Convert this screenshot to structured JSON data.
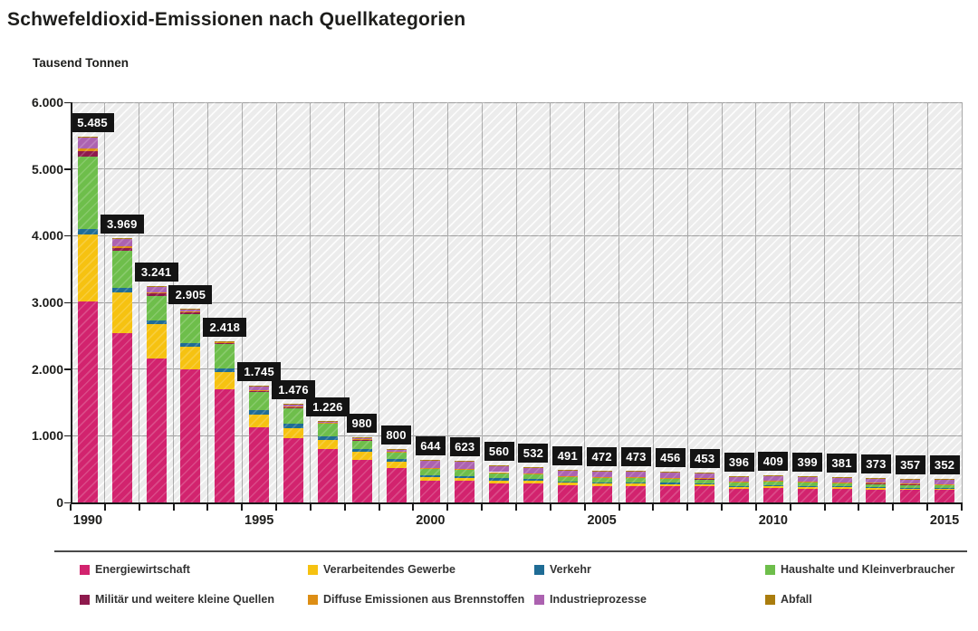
{
  "title": "Schwefeldioxid-Emissionen nach Quellkategorien",
  "unit_label": "Tausend Tonnen",
  "colors": {
    "plot_bg": "#ECECEC",
    "hatch": "#FFFFFF",
    "gridline": "#9E9E9E",
    "axis": "#1A1A1A",
    "value_label_bg": "#141414",
    "value_label_text": "#FFFFFF",
    "title_text": "#1D1D1B"
  },
  "chart_data": {
    "type": "bar",
    "stacked": true,
    "title": "Schwefeldioxid-Emissionen nach Quellkategorien",
    "ylabel": "Tausend Tonnen",
    "xlabel": "",
    "ylim": [
      0,
      6000
    ],
    "grid": true,
    "legend_position": "bottom",
    "categories": [
      1990,
      1991,
      1992,
      1993,
      1994,
      1995,
      1996,
      1997,
      1998,
      1999,
      2000,
      2001,
      2002,
      2003,
      2004,
      2005,
      2006,
      2007,
      2008,
      2009,
      2010,
      2011,
      2012,
      2013,
      2014,
      2015
    ],
    "x_tick_labels": [
      "1990",
      "1995",
      "2000",
      "2005",
      "2010",
      "2015"
    ],
    "y_tick_labels": [
      "0",
      "1.000",
      "2.000",
      "3.000",
      "4.000",
      "5.000",
      "6.000"
    ],
    "totals": [
      5485,
      3969,
      3241,
      2905,
      2418,
      1745,
      1476,
      1226,
      980,
      800,
      644,
      623,
      560,
      532,
      491,
      472,
      473,
      456,
      453,
      396,
      409,
      399,
      381,
      373,
      357,
      352
    ],
    "value_labels": [
      "5.485",
      "3.969",
      "3.241",
      "2.905",
      "2.418",
      "1.745",
      "1.476",
      "1.226",
      "980",
      "800",
      "644",
      "623",
      "560",
      "532",
      "491",
      "472",
      "473",
      "456",
      "453",
      "396",
      "409",
      "399",
      "381",
      "373",
      "357",
      "352"
    ],
    "series": [
      {
        "name": "Energiewirtschaft",
        "color": "#D2236E",
        "values": [
          3020,
          2540,
          2160,
          2000,
          1700,
          1130,
          960,
          800,
          640,
          510,
          330,
          320,
          290,
          280,
          255,
          245,
          248,
          240,
          238,
          205,
          215,
          210,
          200,
          196,
          188,
          185
        ]
      },
      {
        "name": "Verarbeitendes Gewerbe",
        "color": "#F6C211",
        "values": [
          1000,
          610,
          510,
          330,
          260,
          190,
          160,
          140,
          120,
          100,
          45,
          45,
          42,
          40,
          38,
          37,
          37,
          36,
          36,
          32,
          33,
          33,
          32,
          32,
          31,
          31
        ]
      },
      {
        "name": "Verkehr",
        "color": "#1F6C95",
        "values": [
          80,
          70,
          60,
          55,
          50,
          60,
          55,
          50,
          45,
          40,
          35,
          33,
          30,
          28,
          25,
          22,
          20,
          18,
          15,
          12,
          10,
          8,
          7,
          6,
          5,
          5
        ]
      },
      {
        "name": "Haushalte und Kleinverbraucher",
        "color": "#6EBE4B",
        "values": [
          1090,
          560,
          370,
          440,
          360,
          280,
          240,
          190,
          130,
          105,
          100,
          95,
          85,
          80,
          75,
          72,
          70,
          65,
          65,
          62,
          62,
          58,
          55,
          54,
          50,
          48
        ]
      },
      {
        "name": "Militär und weitere kleine Quellen",
        "color": "#8E1A4D",
        "values": [
          80,
          40,
          30,
          25,
          20,
          15,
          12,
          10,
          8,
          6,
          5,
          5,
          4,
          4,
          4,
          3,
          3,
          3,
          3,
          3,
          3,
          3,
          3,
          3,
          3,
          3
        ]
      },
      {
        "name": "Diffuse Emissionen aus Brennstoffen",
        "color": "#DD8E15",
        "values": [
          40,
          20,
          15,
          12,
          10,
          8,
          6,
          5,
          4,
          4,
          4,
          4,
          4,
          3,
          3,
          3,
          3,
          3,
          3,
          3,
          3,
          3,
          3,
          3,
          3,
          3
        ]
      },
      {
        "name": "Industrieprozesse",
        "color": "#AC62B0",
        "values": [
          170,
          125,
          92,
          40,
          15,
          59,
          40,
          28,
          30,
          32,
          122,
          118,
          102,
          94,
          88,
          87,
          89,
          88,
          90,
          76,
          80,
          81,
          78,
          76,
          74,
          74
        ]
      },
      {
        "name": "Abfall",
        "color": "#AA7D0E",
        "values": [
          5,
          4,
          4,
          3,
          3,
          3,
          3,
          3,
          3,
          3,
          3,
          3,
          3,
          3,
          3,
          3,
          3,
          3,
          3,
          3,
          3,
          3,
          3,
          3,
          3,
          3
        ]
      }
    ]
  }
}
